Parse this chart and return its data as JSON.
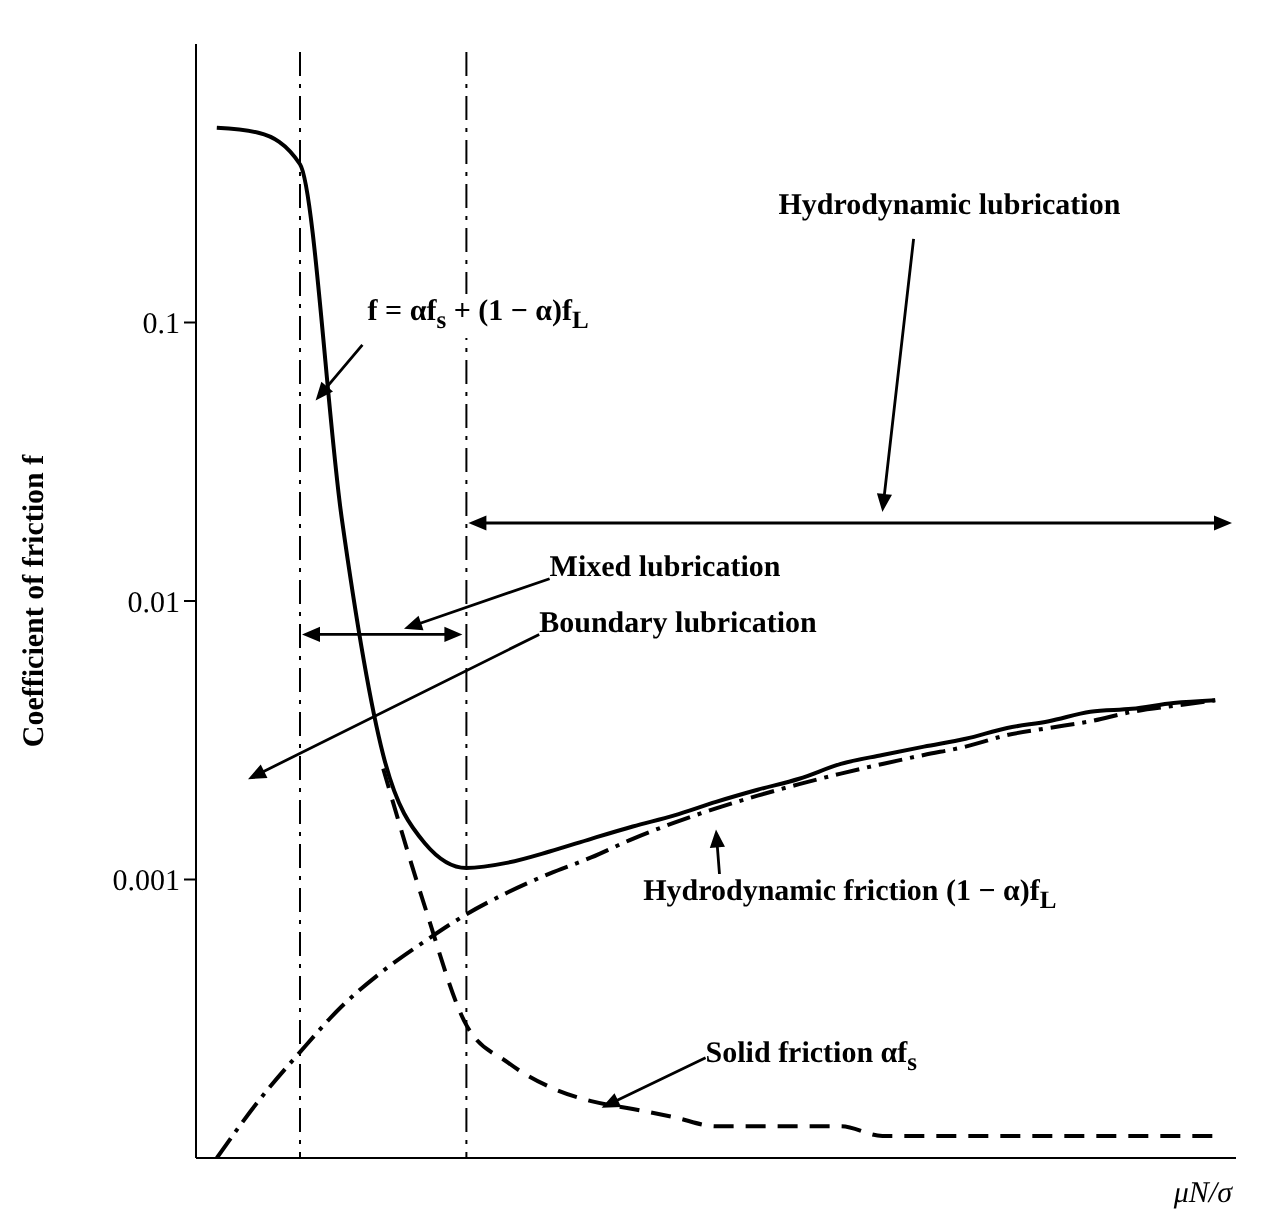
{
  "chart_data": {
    "type": "line",
    "xlabel": "μN/σ",
    "ylabel": "Coefficient of friction f",
    "log": "y",
    "ylim": [
      0.0001,
      1
    ],
    "yticks": [
      0.1,
      0.01,
      0.001
    ],
    "tick_labels": "y",
    "grid": false,
    "legend": false,
    "marker": "none",
    "categories": [
      null,
      null,
      null,
      null,
      null,
      null,
      null,
      null,
      null,
      null,
      null,
      null,
      null,
      null,
      null,
      null,
      null,
      null,
      null,
      null,
      null,
      null,
      null,
      null,
      null
    ],
    "series": [
      {
        "color": "#000000",
        "line_style": "solid",
        "values": [
          0.5,
          0.48,
          0.37,
          0.02,
          0.0028,
          0.00135,
          0.0011,
          0.00115,
          0.00126,
          0.0014,
          0.00155,
          0.0017,
          0.0019,
          0.0021,
          0.0023,
          0.0026,
          0.0028,
          0.003,
          0.0032,
          0.0035,
          0.0037,
          0.004,
          0.0041,
          0.0043,
          0.0044
        ]
      },
      {
        "color": "#000000",
        "line_style": "dashed",
        "values": [
          null,
          null,
          null,
          null,
          0.0025,
          0.0008,
          0.0003,
          0.00022,
          0.00018,
          0.00016,
          0.00015,
          0.00014,
          0.00013,
          0.00013,
          0.00013,
          0.00013,
          0.00012,
          0.00012,
          0.00012,
          0.00012,
          0.00012,
          0.00012,
          0.00012,
          0.00012,
          0.00012
        ]
      },
      {
        "color": "#000000",
        "line_style": "dashdot",
        "values": [
          0.0001,
          0.00016,
          0.00024,
          0.00035,
          0.00047,
          0.0006,
          0.00075,
          0.0009,
          0.00105,
          0.0012,
          0.0014,
          0.0016,
          0.0018,
          0.002,
          0.0022,
          0.0024,
          0.0026,
          0.0028,
          0.003,
          0.0033,
          0.0035,
          0.0037,
          0.004,
          0.0042,
          0.0044
        ]
      }
    ],
    "annotations": [
      "f = αf$_{s}$ + (1 − α)f$_{L}$",
      "Hydrodynamic lubrication",
      "Mixed lubrication",
      "Boundary lubrication",
      "Hydrodynamic friction (1 − α)f$_{L}$",
      "Solid friction αf$_{s}$"
    ]
  }
}
